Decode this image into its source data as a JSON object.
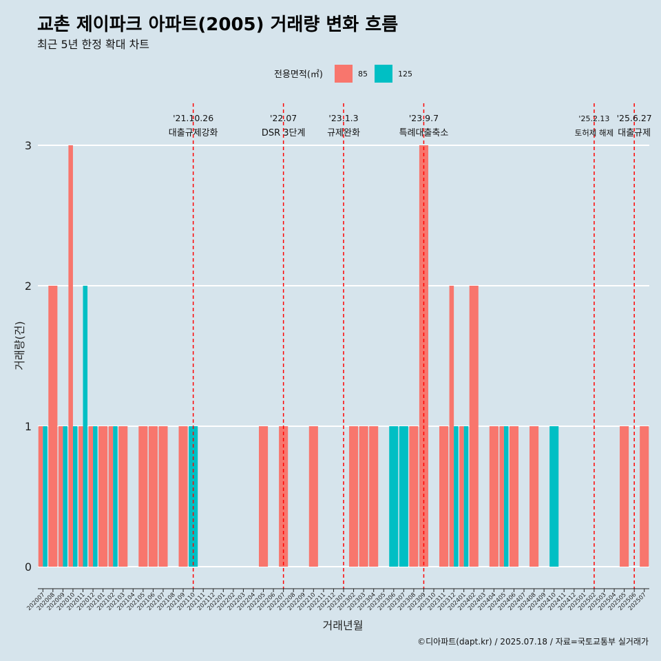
{
  "chart_data": {
    "type": "bar",
    "title": "교촌 제이파크 아파트(2005) 거래량 변화 흐름",
    "subtitle": "최근 5년 한정 확대 차트",
    "xlabel": "거래년월",
    "ylabel": "거래량(건)",
    "ylim": [
      0,
      3
    ],
    "yticks": [
      0,
      1,
      2,
      3
    ],
    "grid": "horizontal",
    "legend": {
      "title": "전용면적(㎡)",
      "position": "top",
      "entries": [
        {
          "name": "85",
          "color": "#f8766d"
        },
        {
          "name": "125",
          "color": "#00bfc4"
        }
      ]
    },
    "x_ticks": [
      "202007",
      "202008",
      "202009",
      "202010",
      "202011",
      "202012",
      "202101",
      "202102",
      "202103",
      "202104",
      "202105",
      "202106",
      "202107",
      "202108",
      "202109",
      "202110",
      "202111",
      "202112",
      "202201",
      "202202",
      "202203",
      "202204",
      "202205",
      "202206",
      "202207",
      "202208",
      "202209",
      "202210",
      "202211",
      "202212",
      "202301",
      "202302",
      "202303",
      "202304",
      "202305",
      "202306",
      "202307",
      "202308",
      "202309",
      "202310",
      "202311",
      "202312",
      "202401",
      "202402",
      "202403",
      "202404",
      "202405",
      "202406",
      "202407",
      "202408",
      "202409",
      "202410",
      "202411",
      "202412",
      "202501",
      "202502",
      "202503",
      "202504",
      "202505",
      "202506",
      "202507"
    ],
    "series": [
      {
        "name": "85",
        "color": "#f8766d",
        "values": [
          1,
          2,
          1,
          3,
          1,
          1,
          1,
          1,
          1,
          0,
          1,
          1,
          1,
          0,
          1,
          0,
          0,
          0,
          0,
          0,
          0,
          0,
          1,
          0,
          1,
          0,
          0,
          1,
          0,
          0,
          0,
          1,
          1,
          1,
          0,
          0,
          0,
          1,
          3,
          0,
          1,
          2,
          1,
          2,
          0,
          1,
          1,
          1,
          0,
          1,
          0,
          0,
          0,
          0,
          0,
          0,
          0,
          0,
          1,
          0,
          1
        ]
      },
      {
        "name": "125",
        "color": "#00bfc4",
        "values": [
          1,
          0,
          1,
          1,
          2,
          1,
          0,
          1,
          0,
          0,
          0,
          0,
          0,
          0,
          0,
          1,
          0,
          0,
          0,
          0,
          0,
          0,
          0,
          0,
          0,
          0,
          0,
          0,
          0,
          0,
          0,
          0,
          0,
          0,
          0,
          1,
          1,
          0,
          0,
          0,
          0,
          1,
          1,
          0,
          0,
          0,
          1,
          0,
          0,
          0,
          0,
          1,
          0,
          0,
          0,
          0,
          0,
          0,
          0,
          0,
          0
        ]
      }
    ],
    "events": [
      {
        "x": "202110",
        "date": "'21.10.26",
        "label": "대출규제강화"
      },
      {
        "x": "202207",
        "date": "'22.07",
        "label": "DSR 3단계"
      },
      {
        "x": "202301",
        "date": "'23.1.3",
        "label": "규제완화"
      },
      {
        "x": "202309",
        "date": "'23.9.7",
        "label": "특례대출축소"
      },
      {
        "x": "202502",
        "date": "'25.2.13",
        "label": "토허제 해제"
      },
      {
        "x": "202506",
        "date": "'25.6.27",
        "label": "대출규제"
      }
    ],
    "event_line_color": "#ff0000"
  },
  "caption": "©디아파트(dapt.kr) / 2025.07.18 / 자료=국토교통부 실거래가",
  "colors": {
    "background": "#d6e4ec",
    "grid": "#ffffff"
  }
}
